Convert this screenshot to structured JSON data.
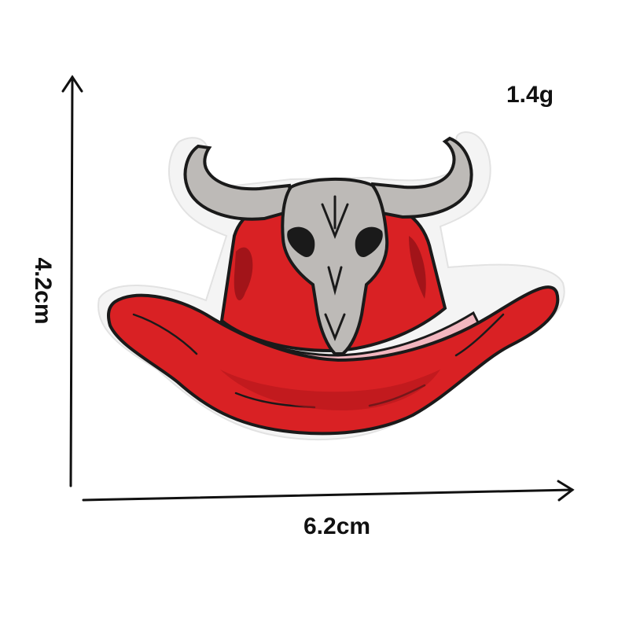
{
  "measurements": {
    "weight": "1.4g",
    "height": "4.2cm",
    "width": "6.2cm"
  },
  "colors": {
    "hat_red": "#d92124",
    "hat_dark_red": "#8f1016",
    "band_pink": "#f2b6bf",
    "skull_silver": "#bdbab7",
    "outline": "#1a1a1a",
    "felt_border": "#f4f4f4"
  }
}
